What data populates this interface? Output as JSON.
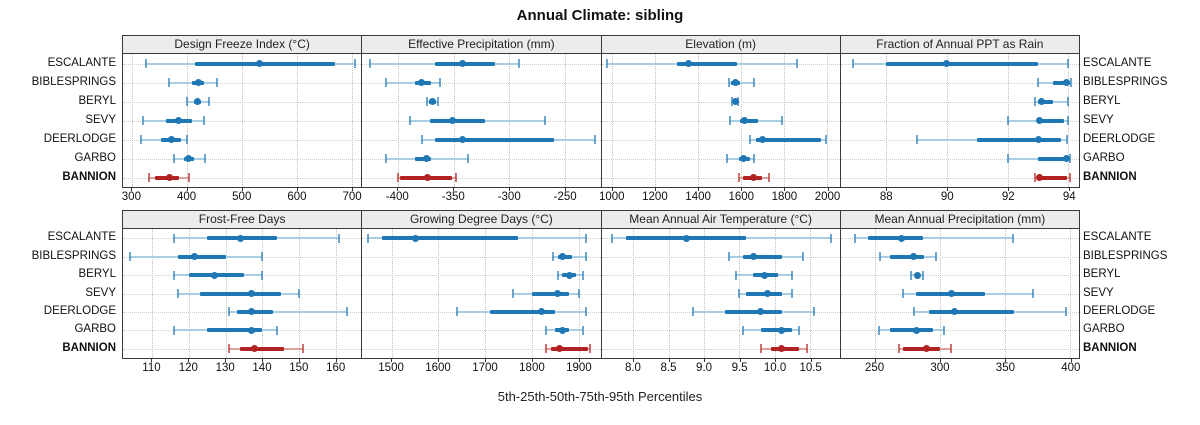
{
  "title": "Annual Climate: sibling",
  "caption": "5th-25th-50th-75th-95th Percentiles",
  "stations": [
    "ESCALANTE",
    "BIBLESPRINGS",
    "BERYL",
    "SEVY",
    "DEERLODGE",
    "GARBO",
    "BANNION"
  ],
  "highlight_station": "BANNION",
  "colors": {
    "blue_main": "#1f77b4",
    "blue_light": "#a9cde3",
    "red_main": "#b22222",
    "red_light": "#dca29c",
    "header_bg": "#ececec",
    "panel_border": "#3a3a3a",
    "grid": "#c2c2c2"
  },
  "chart_data": [
    {
      "type": "dot-whisker",
      "title": "Design Freeze Index (°C)",
      "xlim": [
        283,
        717
      ],
      "ticks": [
        300,
        400,
        500,
        600,
        700
      ],
      "tick_labels": [
        "300",
        "400",
        "500",
        "600",
        "700"
      ],
      "percentile_order": [
        "p5",
        "p25",
        "p50",
        "p75",
        "p95"
      ],
      "series": [
        {
          "name": "ESCALANTE",
          "values": [
            325,
            415,
            532,
            670,
            705
          ]
        },
        {
          "name": "BIBLESPRINGS",
          "values": [
            367,
            408,
            420,
            430,
            455
          ]
        },
        {
          "name": "BERYL",
          "values": [
            400,
            412,
            418,
            426,
            440
          ]
        },
        {
          "name": "SEVY",
          "values": [
            320,
            362,
            385,
            408,
            430
          ]
        },
        {
          "name": "DEERLODGE",
          "values": [
            315,
            352,
            372,
            388,
            400
          ]
        },
        {
          "name": "GARBO",
          "values": [
            375,
            395,
            403,
            413,
            433
          ]
        },
        {
          "name": "BANNION",
          "values": [
            330,
            342,
            368,
            385,
            403
          ]
        }
      ]
    },
    {
      "type": "dot-whisker",
      "title": "Effective Precipitation (mm)",
      "xlim": [
        -432,
        -218
      ],
      "ticks": [
        -400,
        -350,
        -300,
        -250
      ],
      "tick_labels": [
        "-400",
        "-350",
        "-300",
        "-250"
      ],
      "percentile_order": [
        "p5",
        "p25",
        "p50",
        "p75",
        "p95"
      ],
      "series": [
        {
          "name": "ESCALANTE",
          "values": [
            -425,
            -367,
            -342,
            -313,
            -291
          ]
        },
        {
          "name": "BIBLESPRINGS",
          "values": [
            -411,
            -385,
            -379,
            -370,
            -362
          ]
        },
        {
          "name": "BERYL",
          "values": [
            -374,
            -372,
            -369,
            -366,
            -364
          ]
        },
        {
          "name": "SEVY",
          "values": [
            -389,
            -371,
            -351,
            -322,
            -268
          ]
        },
        {
          "name": "DEERLODGE",
          "values": [
            -378,
            -367,
            -342,
            -260,
            -223
          ]
        },
        {
          "name": "GARBO",
          "values": [
            -411,
            -385,
            -374,
            -370,
            -337
          ]
        },
        {
          "name": "BANNION",
          "values": [
            -400,
            -398,
            -373,
            -351,
            -348
          ]
        }
      ]
    },
    {
      "type": "dot-whisker",
      "title": "Elevation (m)",
      "xlim": [
        950,
        2060
      ],
      "ticks": [
        1000,
        1200,
        1400,
        1600,
        1800,
        2000
      ],
      "tick_labels": [
        "1000",
        "1200",
        "1400",
        "1600",
        "1800",
        "2000"
      ],
      "percentile_order": [
        "p5",
        "p25",
        "p50",
        "p75",
        "p95"
      ],
      "series": [
        {
          "name": "ESCALANTE",
          "values": [
            975,
            1300,
            1355,
            1580,
            1860
          ]
        },
        {
          "name": "BIBLESPRINGS",
          "values": [
            1545,
            1555,
            1575,
            1595,
            1660
          ]
        },
        {
          "name": "BERYL",
          "values": [
            1558,
            1565,
            1572,
            1578,
            1588
          ]
        },
        {
          "name": "SEVY",
          "values": [
            1550,
            1595,
            1615,
            1680,
            1790
          ]
        },
        {
          "name": "DEERLODGE",
          "values": [
            1640,
            1670,
            1700,
            1975,
            1995
          ]
        },
        {
          "name": "GARBO",
          "values": [
            1535,
            1590,
            1612,
            1640,
            1660
          ]
        },
        {
          "name": "BANNION",
          "values": [
            1590,
            1610,
            1660,
            1700,
            1730
          ]
        }
      ]
    },
    {
      "type": "dot-whisker",
      "title": "Fraction of Annual PPT as Rain",
      "xlim": [
        86.5,
        94.35
      ],
      "ticks": [
        88,
        90,
        92,
        94
      ],
      "tick_labels": [
        "88",
        "90",
        "92",
        "94"
      ],
      "percentile_order": [
        "p5",
        "p25",
        "p50",
        "p75",
        "p95"
      ],
      "series": [
        {
          "name": "ESCALANTE",
          "values": [
            86.9,
            88.0,
            90.0,
            93.0,
            94.0
          ]
        },
        {
          "name": "BIBLESPRINGS",
          "values": [
            93.0,
            93.5,
            93.95,
            94.05,
            94.1
          ]
        },
        {
          "name": "BERYL",
          "values": [
            92.9,
            93.0,
            93.1,
            93.5,
            94.0
          ]
        },
        {
          "name": "SEVY",
          "values": [
            92.0,
            93.0,
            93.05,
            93.85,
            94.0
          ]
        },
        {
          "name": "DEERLODGE",
          "values": [
            89.0,
            91.0,
            93.0,
            93.75,
            93.95
          ]
        },
        {
          "name": "GARBO",
          "values": [
            92.0,
            93.0,
            93.95,
            94.0,
            94.05
          ]
        },
        {
          "name": "BANNION",
          "values": [
            92.9,
            93.0,
            93.05,
            93.95,
            94.05
          ]
        }
      ]
    },
    {
      "type": "dot-whisker",
      "title": "Frost-Free Days",
      "xlim": [
        102,
        167
      ],
      "ticks": [
        110,
        120,
        130,
        140,
        150,
        160
      ],
      "tick_labels": [
        "110",
        "120",
        "130",
        "140",
        "150",
        "160"
      ],
      "percentile_order": [
        "p5",
        "p25",
        "p50",
        "p75",
        "p95"
      ],
      "series": [
        {
          "name": "ESCALANTE",
          "values": [
            116,
            125,
            134,
            144,
            161
          ]
        },
        {
          "name": "BIBLESPRINGS",
          "values": [
            104,
            117,
            121.5,
            130,
            140
          ]
        },
        {
          "name": "BERYL",
          "values": [
            116,
            120,
            127,
            135,
            140
          ]
        },
        {
          "name": "SEVY",
          "values": [
            117,
            123,
            137,
            145,
            150
          ]
        },
        {
          "name": "DEERLODGE",
          "values": [
            131,
            133,
            137,
            143,
            163
          ]
        },
        {
          "name": "GARBO",
          "values": [
            116,
            125,
            137,
            140,
            144
          ]
        },
        {
          "name": "BANNION",
          "values": [
            131,
            134,
            138,
            146,
            151
          ]
        }
      ]
    },
    {
      "type": "dot-whisker",
      "title": "Growing Degree Days (°C)",
      "xlim": [
        1437,
        1947
      ],
      "ticks": [
        1500,
        1600,
        1700,
        1800,
        1900
      ],
      "tick_labels": [
        "1500",
        "1600",
        "1700",
        "1800",
        "1900"
      ],
      "percentile_order": [
        "p5",
        "p25",
        "p50",
        "p75",
        "p95"
      ],
      "series": [
        {
          "name": "ESCALANTE",
          "values": [
            1450,
            1480,
            1550,
            1770,
            1915
          ]
        },
        {
          "name": "BIBLESPRINGS",
          "values": [
            1845,
            1855,
            1865,
            1885,
            1915
          ]
        },
        {
          "name": "BERYL",
          "values": [
            1855,
            1865,
            1880,
            1895,
            1910
          ]
        },
        {
          "name": "SEVY",
          "values": [
            1760,
            1800,
            1855,
            1880,
            1900
          ]
        },
        {
          "name": "DEERLODGE",
          "values": [
            1640,
            1710,
            1820,
            1850,
            1915
          ]
        },
        {
          "name": "GARBO",
          "values": [
            1830,
            1850,
            1865,
            1880,
            1910
          ]
        },
        {
          "name": "BANNION",
          "values": [
            1830,
            1840,
            1860,
            1920,
            1925
          ]
        }
      ]
    },
    {
      "type": "dot-whisker",
      "title": "Mean Annual Air Temperature (°C)",
      "xlim": [
        7.55,
        10.92
      ],
      "ticks": [
        8.0,
        8.5,
        9.0,
        9.5,
        10.0,
        10.5
      ],
      "tick_labels": [
        "8.0",
        "8.5",
        "9.0",
        "9.5",
        "10.0",
        "10.5"
      ],
      "percentile_order": [
        "p5",
        "p25",
        "p50",
        "p75",
        "p95"
      ],
      "series": [
        {
          "name": "ESCALANTE",
          "values": [
            7.7,
            7.9,
            8.75,
            9.6,
            10.8
          ]
        },
        {
          "name": "BIBLESPRINGS",
          "values": [
            9.35,
            9.55,
            9.7,
            10.1,
            10.4
          ]
        },
        {
          "name": "BERYL",
          "values": [
            9.45,
            9.7,
            9.85,
            10.05,
            10.25
          ]
        },
        {
          "name": "SEVY",
          "values": [
            9.5,
            9.6,
            9.9,
            10.1,
            10.25
          ]
        },
        {
          "name": "DEERLODGE",
          "values": [
            8.85,
            9.3,
            9.8,
            10.1,
            10.55
          ]
        },
        {
          "name": "GARBO",
          "values": [
            9.55,
            9.8,
            10.1,
            10.25,
            10.35
          ]
        },
        {
          "name": "BANNION",
          "values": [
            9.8,
            9.95,
            10.1,
            10.35,
            10.45
          ]
        }
      ]
    },
    {
      "type": "dot-whisker",
      "title": "Mean Annual Precipitation (mm)",
      "xlim": [
        224,
        407
      ],
      "ticks": [
        250,
        300,
        350,
        400
      ],
      "tick_labels": [
        "250",
        "300",
        "350",
        "400"
      ],
      "percentile_order": [
        "p5",
        "p25",
        "p50",
        "p75",
        "p95"
      ],
      "series": [
        {
          "name": "ESCALANTE",
          "values": [
            235,
            245,
            271,
            287,
            356
          ]
        },
        {
          "name": "BIBLESPRINGS",
          "values": [
            254,
            262,
            280,
            288,
            297
          ]
        },
        {
          "name": "BERYL",
          "values": [
            278,
            281,
            283,
            285,
            287
          ]
        },
        {
          "name": "SEVY",
          "values": [
            272,
            282,
            309,
            335,
            372
          ]
        },
        {
          "name": "DEERLODGE",
          "values": [
            280,
            292,
            311,
            357,
            397
          ]
        },
        {
          "name": "GARBO",
          "values": [
            253,
            262,
            282,
            295,
            303
          ]
        },
        {
          "name": "BANNION",
          "values": [
            269,
            272,
            290,
            300,
            309
          ]
        }
      ]
    }
  ]
}
